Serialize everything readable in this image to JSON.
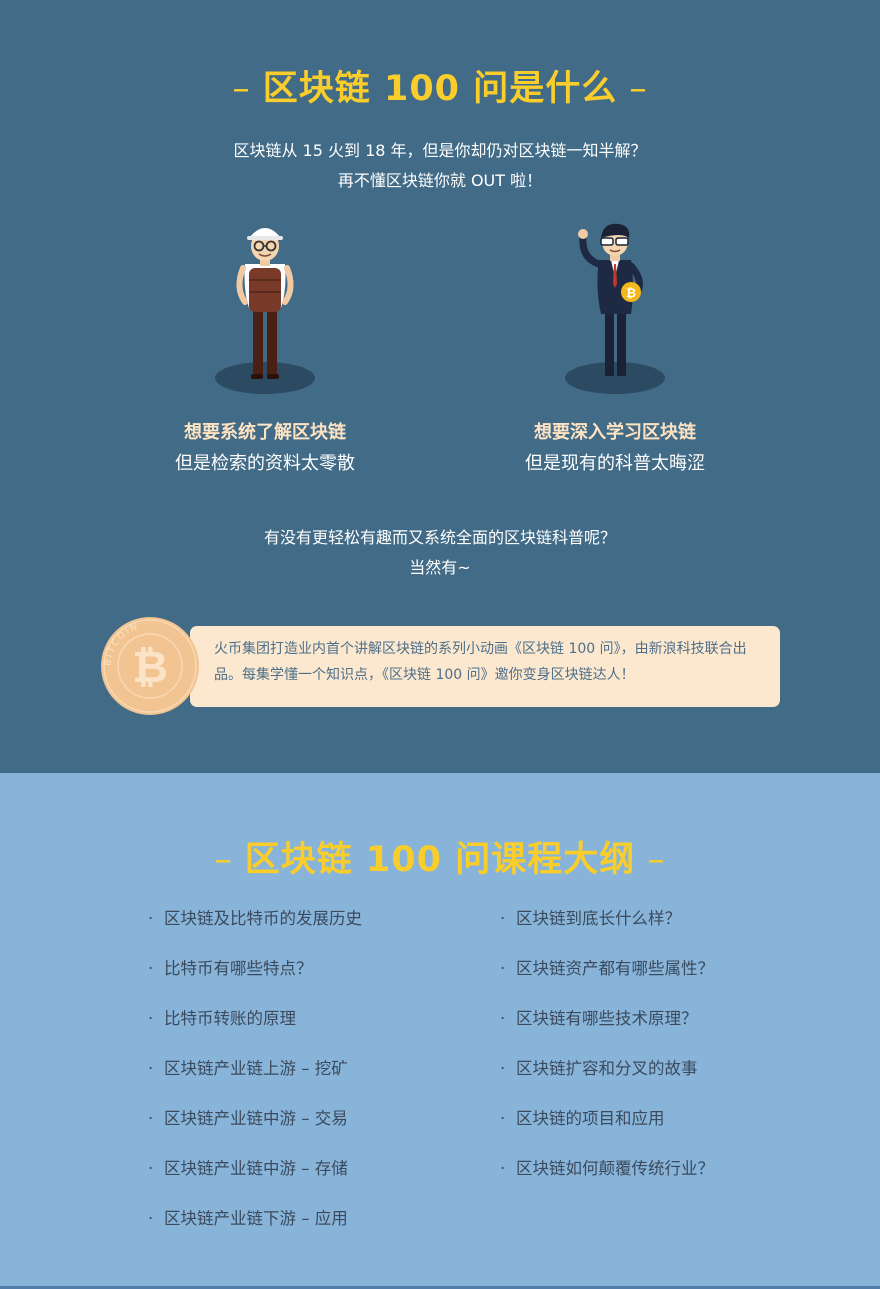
{
  "section1": {
    "title": "区块链 100 问是什么",
    "dash": "–",
    "lead": [
      "区块链从 15 火到 18 年，但是你却仍对区块链一知半解？",
      "再不懂区块链你就 OUT 啦！"
    ],
    "personas": [
      {
        "headline": "想要系统了解区块链",
        "sub": "但是检索的资料太零散",
        "icon": "worker-character-icon"
      },
      {
        "headline": "想要深入学习区块链",
        "sub": "但是现有的科普太晦涩",
        "icon": "businessman-character-icon"
      }
    ],
    "question": [
      "有没有更轻松有趣而又系统全面的区块链科普呢？",
      "当然有~"
    ],
    "intro": "火币集团打造业内首个讲解区块链的系列小动画《区块链 100 问》，由新浪科技联合出品。每集学懂一个知识点，《区块链 100 问》邀你变身区块链达人！",
    "coin_text": "BITCOIN"
  },
  "section2": {
    "title": "区块链 100 问课程大纲",
    "dash": "–",
    "bullet": "·",
    "left": [
      "区块链及比特币的发展历史",
      "比特币有哪些特点？",
      "比特币转账的原理",
      "区块链产业链上游 – 挖矿",
      "区块链产业链中游 – 交易",
      "区块链产业链中游 – 存储",
      "区块链产业链下游 – 应用"
    ],
    "right": [
      "区块链到底长什么样？",
      "区块链资产都有哪些属性？",
      "区块链有哪些技术原理？",
      "区块链扩容和分叉的故事",
      "区块链的项目和应用",
      "区块链如何颠覆传统行业？"
    ]
  },
  "colors": {
    "top_bg": "#416b87",
    "bottom_bg": "#88b4da",
    "title_yellow": "#f8cd2c",
    "card_bg": "#fbe8cf",
    "coin": "#f2c491"
  }
}
